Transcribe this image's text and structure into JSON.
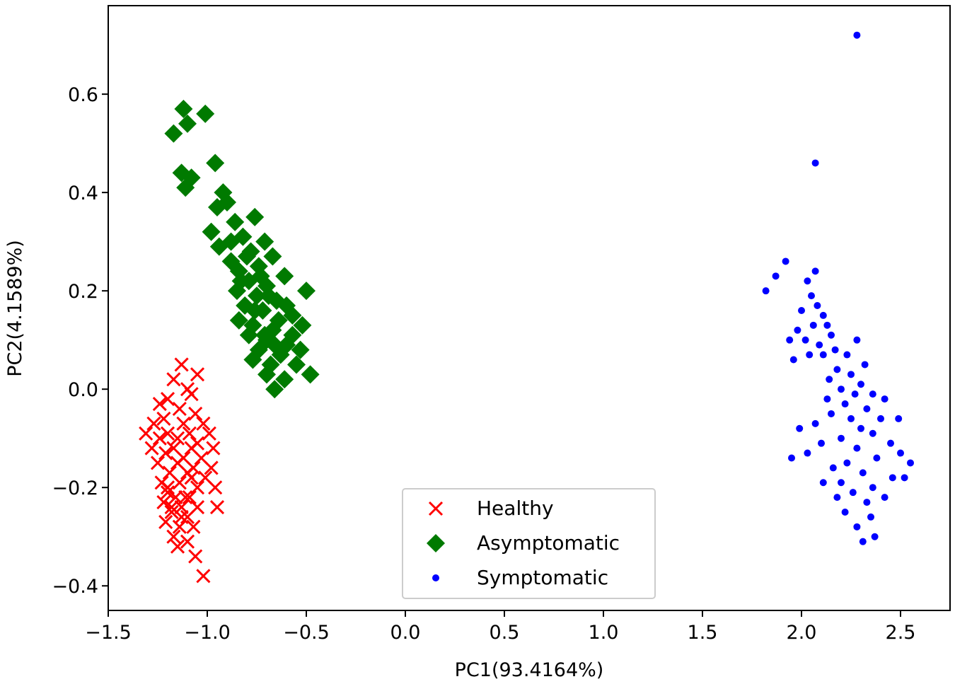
{
  "chart_data": {
    "type": "scatter",
    "title": "",
    "xlabel": "PC1(93.4164%)",
    "ylabel": "PC2(4.1589%)",
    "xlim": [
      -1.5,
      2.75
    ],
    "ylim": [
      -0.45,
      0.78
    ],
    "xticks": [
      -1.5,
      -1.0,
      -0.5,
      0.0,
      0.5,
      1.0,
      1.5,
      2.0,
      2.5
    ],
    "xtick_labels": [
      "−1.5",
      "−1.0",
      "−0.5",
      "0.0",
      "0.5",
      "1.0",
      "1.5",
      "2.0",
      "2.5"
    ],
    "yticks": [
      -0.4,
      -0.2,
      0.0,
      0.2,
      0.4,
      0.6
    ],
    "ytick_labels": [
      "−0.4",
      "−0.2",
      "0.0",
      "0.2",
      "0.4",
      "0.6"
    ],
    "grid": false,
    "legend_position": "bottom-center",
    "series": [
      {
        "name": "Healthy",
        "marker": "x",
        "color": "#ff0000",
        "points": [
          [
            -1.13,
            0.05
          ],
          [
            -1.05,
            0.03
          ],
          [
            -1.17,
            0.02
          ],
          [
            -1.1,
            0.0
          ],
          [
            -1.08,
            -0.01
          ],
          [
            -1.2,
            -0.02
          ],
          [
            -1.24,
            -0.03
          ],
          [
            -1.14,
            -0.04
          ],
          [
            -1.06,
            -0.05
          ],
          [
            -1.22,
            -0.06
          ],
          [
            -1.27,
            -0.07
          ],
          [
            -1.12,
            -0.07
          ],
          [
            -1.02,
            -0.07
          ],
          [
            -1.31,
            -0.09
          ],
          [
            -1.2,
            -0.09
          ],
          [
            -1.09,
            -0.09
          ],
          [
            -0.99,
            -0.09
          ],
          [
            -1.24,
            -0.1
          ],
          [
            -1.15,
            -0.1
          ],
          [
            -1.05,
            -0.11
          ],
          [
            -1.28,
            -0.12
          ],
          [
            -1.17,
            -0.12
          ],
          [
            -1.08,
            -0.12
          ],
          [
            -0.97,
            -0.12
          ],
          [
            -1.21,
            -0.13
          ],
          [
            -1.12,
            -0.14
          ],
          [
            -1.03,
            -0.14
          ],
          [
            -1.25,
            -0.15
          ],
          [
            -1.15,
            -0.15
          ],
          [
            -1.07,
            -0.16
          ],
          [
            -0.98,
            -0.16
          ],
          [
            -1.19,
            -0.17
          ],
          [
            -1.1,
            -0.17
          ],
          [
            -1.01,
            -0.18
          ],
          [
            -1.23,
            -0.19
          ],
          [
            -1.14,
            -0.19
          ],
          [
            -1.05,
            -0.2
          ],
          [
            -0.96,
            -0.2
          ],
          [
            -1.2,
            -0.21
          ],
          [
            -1.16,
            -0.22
          ],
          [
            -1.09,
            -0.22
          ],
          [
            -1.22,
            -0.23
          ],
          [
            -1.13,
            -0.24
          ],
          [
            -1.05,
            -0.24
          ],
          [
            -0.95,
            -0.24
          ],
          [
            -1.18,
            -0.25
          ],
          [
            -1.1,
            -0.26
          ],
          [
            -1.21,
            -0.27
          ],
          [
            -1.14,
            -0.28
          ],
          [
            -1.07,
            -0.28
          ],
          [
            -1.17,
            -0.3
          ],
          [
            -1.1,
            -0.31
          ],
          [
            -1.15,
            -0.32
          ],
          [
            -1.06,
            -0.34
          ],
          [
            -1.02,
            -0.38
          ],
          [
            -1.2,
            -0.2
          ],
          [
            -1.11,
            -0.22
          ],
          [
            -1.18,
            -0.24
          ],
          [
            -1.13,
            -0.26
          ],
          [
            -1.08,
            -0.18
          ]
        ]
      },
      {
        "name": "Asymptomatic",
        "marker": "D",
        "color": "#007a00",
        "points": [
          [
            -1.12,
            0.57
          ],
          [
            -1.01,
            0.56
          ],
          [
            -1.17,
            0.52
          ],
          [
            -1.1,
            0.54
          ],
          [
            -0.96,
            0.46
          ],
          [
            -1.13,
            0.44
          ],
          [
            -1.08,
            0.43
          ],
          [
            -1.11,
            0.41
          ],
          [
            -0.92,
            0.4
          ],
          [
            -0.95,
            0.37
          ],
          [
            -0.9,
            0.38
          ],
          [
            -0.76,
            0.35
          ],
          [
            -0.86,
            0.34
          ],
          [
            -0.98,
            0.32
          ],
          [
            -0.82,
            0.31
          ],
          [
            -0.71,
            0.3
          ],
          [
            -0.94,
            0.29
          ],
          [
            -0.78,
            0.28
          ],
          [
            -0.67,
            0.27
          ],
          [
            -0.88,
            0.26
          ],
          [
            -0.74,
            0.25
          ],
          [
            -0.84,
            0.24
          ],
          [
            -0.61,
            0.23
          ],
          [
            -0.79,
            0.22
          ],
          [
            -0.7,
            0.21
          ],
          [
            -0.5,
            0.2
          ],
          [
            -0.85,
            0.2
          ],
          [
            -0.75,
            0.19
          ],
          [
            -0.65,
            0.18
          ],
          [
            -0.81,
            0.17
          ],
          [
            -0.72,
            0.16
          ],
          [
            -0.57,
            0.15
          ],
          [
            -0.84,
            0.14
          ],
          [
            -0.77,
            0.13
          ],
          [
            -0.67,
            0.12
          ],
          [
            -0.52,
            0.13
          ],
          [
            -0.79,
            0.11
          ],
          [
            -0.7,
            0.1
          ],
          [
            -0.6,
            0.09
          ],
          [
            -0.74,
            0.08
          ],
          [
            -0.63,
            0.07
          ],
          [
            -0.53,
            0.08
          ],
          [
            -0.77,
            0.06
          ],
          [
            -0.68,
            0.05
          ],
          [
            -0.55,
            0.05
          ],
          [
            -0.7,
            0.03
          ],
          [
            -0.61,
            0.02
          ],
          [
            -0.48,
            0.03
          ],
          [
            -0.66,
            0.0
          ],
          [
            -0.8,
            0.27
          ],
          [
            -0.73,
            0.23
          ],
          [
            -0.69,
            0.19
          ],
          [
            -0.76,
            0.16
          ],
          [
            -0.64,
            0.14
          ],
          [
            -0.71,
            0.11
          ],
          [
            -0.66,
            0.09
          ],
          [
            -0.88,
            0.3
          ],
          [
            -0.83,
            0.22
          ],
          [
            -0.6,
            0.17
          ],
          [
            -0.57,
            0.11
          ]
        ]
      },
      {
        "name": "Symptomatic",
        "marker": "o",
        "color": "#0000ff",
        "points": [
          [
            2.28,
            0.72
          ],
          [
            2.07,
            0.46
          ],
          [
            1.92,
            0.26
          ],
          [
            1.87,
            0.23
          ],
          [
            2.07,
            0.24
          ],
          [
            1.82,
            0.2
          ],
          [
            2.03,
            0.22
          ],
          [
            2.05,
            0.19
          ],
          [
            2.08,
            0.17
          ],
          [
            2.11,
            0.15
          ],
          [
            2.0,
            0.16
          ],
          [
            2.13,
            0.13
          ],
          [
            2.06,
            0.13
          ],
          [
            1.98,
            0.12
          ],
          [
            2.15,
            0.11
          ],
          [
            2.02,
            0.1
          ],
          [
            2.09,
            0.09
          ],
          [
            1.94,
            0.1
          ],
          [
            2.28,
            0.1
          ],
          [
            2.17,
            0.08
          ],
          [
            2.11,
            0.07
          ],
          [
            2.04,
            0.07
          ],
          [
            1.96,
            0.06
          ],
          [
            2.23,
            0.07
          ],
          [
            2.32,
            0.05
          ],
          [
            2.18,
            0.04
          ],
          [
            2.25,
            0.03
          ],
          [
            2.14,
            0.02
          ],
          [
            2.3,
            0.01
          ],
          [
            2.2,
            0.0
          ],
          [
            2.36,
            -0.01
          ],
          [
            2.27,
            -0.01
          ],
          [
            2.42,
            -0.02
          ],
          [
            2.22,
            -0.03
          ],
          [
            2.33,
            -0.04
          ],
          [
            2.15,
            -0.05
          ],
          [
            2.4,
            -0.06
          ],
          [
            2.25,
            -0.06
          ],
          [
            2.07,
            -0.07
          ],
          [
            2.3,
            -0.08
          ],
          [
            1.99,
            -0.08
          ],
          [
            2.36,
            -0.09
          ],
          [
            2.2,
            -0.1
          ],
          [
            2.45,
            -0.11
          ],
          [
            2.1,
            -0.11
          ],
          [
            2.28,
            -0.12
          ],
          [
            2.5,
            -0.13
          ],
          [
            2.03,
            -0.13
          ],
          [
            2.38,
            -0.14
          ],
          [
            2.23,
            -0.15
          ],
          [
            2.55,
            -0.15
          ],
          [
            2.16,
            -0.16
          ],
          [
            2.31,
            -0.17
          ],
          [
            2.46,
            -0.18
          ],
          [
            2.2,
            -0.19
          ],
          [
            2.11,
            -0.19
          ],
          [
            2.36,
            -0.2
          ],
          [
            2.26,
            -0.21
          ],
          [
            2.18,
            -0.22
          ],
          [
            2.33,
            -0.23
          ],
          [
            2.22,
            -0.25
          ],
          [
            2.35,
            -0.26
          ],
          [
            2.28,
            -0.28
          ],
          [
            2.37,
            -0.3
          ],
          [
            2.31,
            -0.31
          ],
          [
            2.52,
            -0.18
          ],
          [
            2.42,
            -0.22
          ],
          [
            1.95,
            -0.14
          ],
          [
            2.49,
            -0.06
          ],
          [
            2.13,
            -0.02
          ]
        ]
      }
    ]
  }
}
